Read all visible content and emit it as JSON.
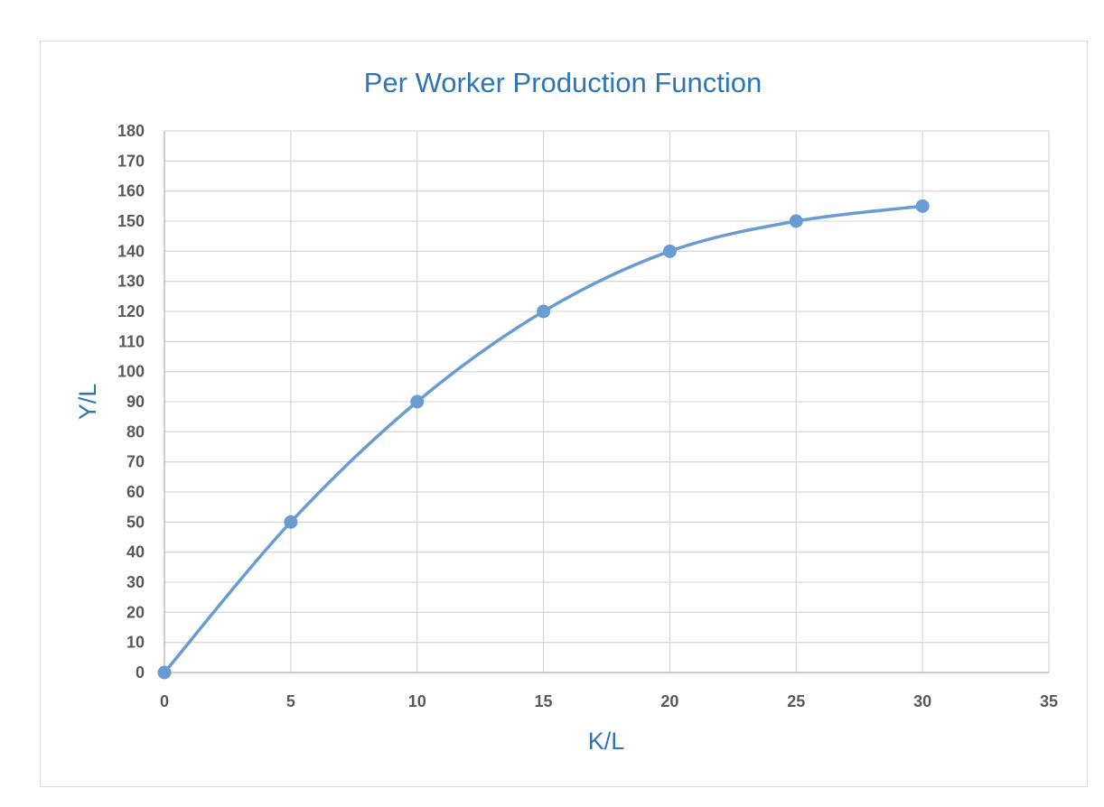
{
  "chart_data": {
    "type": "scatter",
    "title": "Per Worker Production Function",
    "xlabel": "K/L",
    "ylabel": "Y/L",
    "xlim": [
      0,
      35
    ],
    "ylim": [
      0,
      180
    ],
    "xticks": [
      0,
      5,
      10,
      15,
      20,
      25,
      30,
      35
    ],
    "yticks": [
      0,
      10,
      20,
      30,
      40,
      50,
      60,
      70,
      80,
      90,
      100,
      110,
      120,
      130,
      140,
      150,
      160,
      170,
      180
    ],
    "grid": true,
    "smooth_line": true,
    "series": [
      {
        "x": [
          0,
          5,
          10,
          15,
          20,
          25,
          30
        ],
        "y": [
          0,
          50,
          90,
          120,
          140,
          150,
          155
        ],
        "color": "#6a9bd1"
      }
    ]
  }
}
